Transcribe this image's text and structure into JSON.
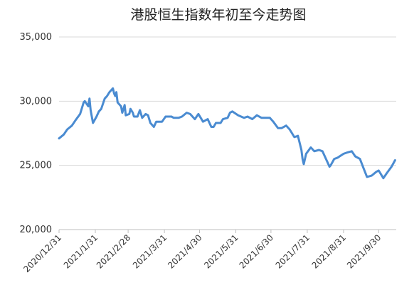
{
  "chart_data": {
    "type": "line",
    "title": "港股恒生指数年初至今走势图",
    "xlabel": "",
    "ylabel": "",
    "ylim": [
      20000,
      35000
    ],
    "yticks": [
      20000,
      25000,
      30000,
      35000
    ],
    "ytick_labels": [
      "20,000",
      "25,000",
      "30,000",
      "35,000"
    ],
    "xlim": [
      "2020-12-31",
      "2021-10-15"
    ],
    "xtick_labels": [
      "2020/12/31",
      "2021/1/31",
      "2021/2/28",
      "2021/3/31",
      "2021/4/30",
      "2021/5/31",
      "2021/6/30",
      "2021/7/31",
      "2021/8/31",
      "2021/9/30"
    ],
    "xtick_dates": [
      "2020-12-31",
      "2021-01-31",
      "2021-02-28",
      "2021-03-31",
      "2021-04-30",
      "2021-05-31",
      "2021-06-30",
      "2021-07-31",
      "2021-08-31",
      "2021-09-30"
    ],
    "grid": true,
    "line_color": "#4a8bd1",
    "series": [
      {
        "x": [
          "2020-12-31",
          "2021-01-04",
          "2021-01-07",
          "2021-01-11",
          "2021-01-14",
          "2021-01-18",
          "2021-01-21",
          "2021-01-22",
          "2021-01-25",
          "2021-01-26",
          "2021-01-27",
          "2021-01-29",
          "2021-02-01",
          "2021-02-03",
          "2021-02-05",
          "2021-02-08",
          "2021-02-10",
          "2021-02-12",
          "2021-02-15",
          "2021-02-16",
          "2021-02-17",
          "2021-02-18",
          "2021-02-19",
          "2021-02-22",
          "2021-02-23",
          "2021-02-25",
          "2021-02-26",
          "2021-03-01",
          "2021-03-02",
          "2021-03-04",
          "2021-03-05",
          "2021-03-08",
          "2021-03-10",
          "2021-03-12",
          "2021-03-15",
          "2021-03-17",
          "2021-03-19",
          "2021-03-22",
          "2021-03-24",
          "2021-03-26",
          "2021-03-29",
          "2021-04-01",
          "2021-04-06",
          "2021-04-08",
          "2021-04-12",
          "2021-04-15",
          "2021-04-19",
          "2021-04-22",
          "2021-04-26",
          "2021-04-29",
          "2021-05-03",
          "2021-05-05",
          "2021-05-07",
          "2021-05-10",
          "2021-05-12",
          "2021-05-14",
          "2021-05-18",
          "2021-05-20",
          "2021-05-24",
          "2021-05-26",
          "2021-05-28",
          "2021-06-02",
          "2021-06-07",
          "2021-06-10",
          "2021-06-14",
          "2021-06-18",
          "2021-06-22",
          "2021-06-25",
          "2021-06-29",
          "2021-07-02",
          "2021-07-06",
          "2021-07-09",
          "2021-07-13",
          "2021-07-16",
          "2021-07-20",
          "2021-07-23",
          "2021-07-26",
          "2021-07-27",
          "2021-07-28",
          "2021-07-30",
          "2021-08-03",
          "2021-08-06",
          "2021-08-10",
          "2021-08-13",
          "2021-08-17",
          "2021-08-19",
          "2021-08-20",
          "2021-08-23",
          "2021-08-26",
          "2021-08-31",
          "2021-09-03",
          "2021-09-07",
          "2021-09-10",
          "2021-09-14",
          "2021-09-17",
          "2021-09-20",
          "2021-09-24",
          "2021-09-28",
          "2021-09-30",
          "2021-10-04",
          "2021-10-07",
          "2021-10-11",
          "2021-10-14"
        ],
        "values": [
          27100,
          27400,
          27800,
          28100,
          28500,
          29000,
          29900,
          30000,
          29600,
          30200,
          29300,
          28300,
          28800,
          29200,
          29400,
          30200,
          30400,
          30700,
          31000,
          30600,
          30400,
          30700,
          29900,
          29600,
          29100,
          29700,
          28900,
          29000,
          29400,
          29100,
          28800,
          28800,
          29300,
          28700,
          29000,
          28900,
          28300,
          28000,
          28400,
          28400,
          28400,
          28800,
          28800,
          28700,
          28700,
          28800,
          29100,
          29000,
          28600,
          29000,
          28400,
          28500,
          28600,
          28000,
          28000,
          28300,
          28300,
          28600,
          28700,
          29100,
          29200,
          28900,
          28700,
          28800,
          28600,
          28900,
          28700,
          28700,
          28700,
          28400,
          27900,
          27900,
          28100,
          27800,
          27200,
          27300,
          26200,
          25500,
          25100,
          25900,
          26400,
          26100,
          26200,
          26100,
          25300,
          24900,
          25000,
          25500,
          25600,
          25900,
          26000,
          26100,
          25700,
          25500,
          24800,
          24100,
          24200,
          24500,
          24600,
          24000,
          24400,
          24900,
          25400
        ]
      }
    ]
  }
}
